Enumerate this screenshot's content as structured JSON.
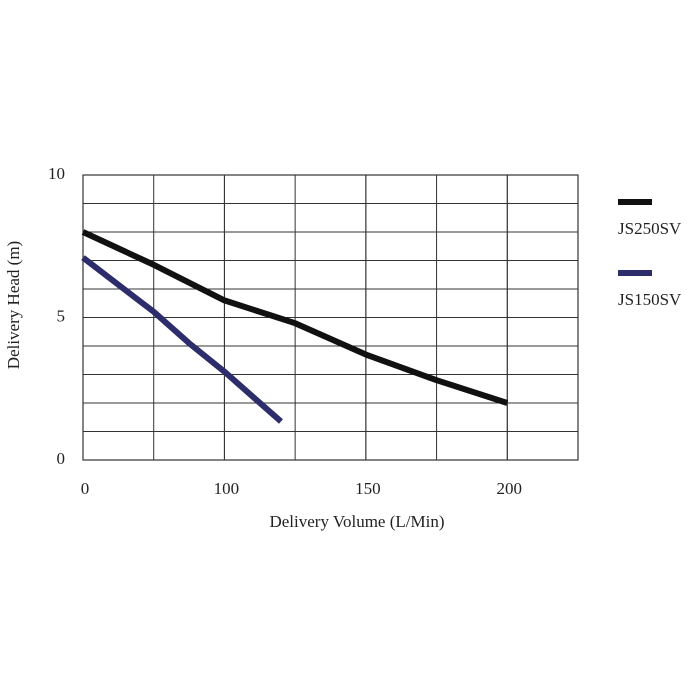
{
  "chart_data": {
    "type": "line",
    "xlabel": "Delivery Volume (L/Min)",
    "ylabel": "Delivery Head (m)",
    "xlim": [
      0,
      225
    ],
    "xticks": [
      0,
      100,
      150,
      200
    ],
    "ylim": [
      0,
      10
    ],
    "yticks": [
      0,
      5,
      10
    ],
    "grid": true,
    "legend": "right",
    "series": [
      {
        "name": "JS250SV",
        "color": "#111111",
        "x": [
          0,
          50,
          100,
          125,
          150,
          175,
          200
        ],
        "values": [
          8.0,
          6.85,
          5.6,
          4.8,
          3.7,
          2.8,
          2.0
        ]
      },
      {
        "name": "JS150SV",
        "color": "#2e2d6b",
        "x": [
          0,
          50,
          75,
          100,
          120
        ],
        "values": [
          7.1,
          5.2,
          4.1,
          3.1,
          1.35
        ]
      }
    ]
  }
}
